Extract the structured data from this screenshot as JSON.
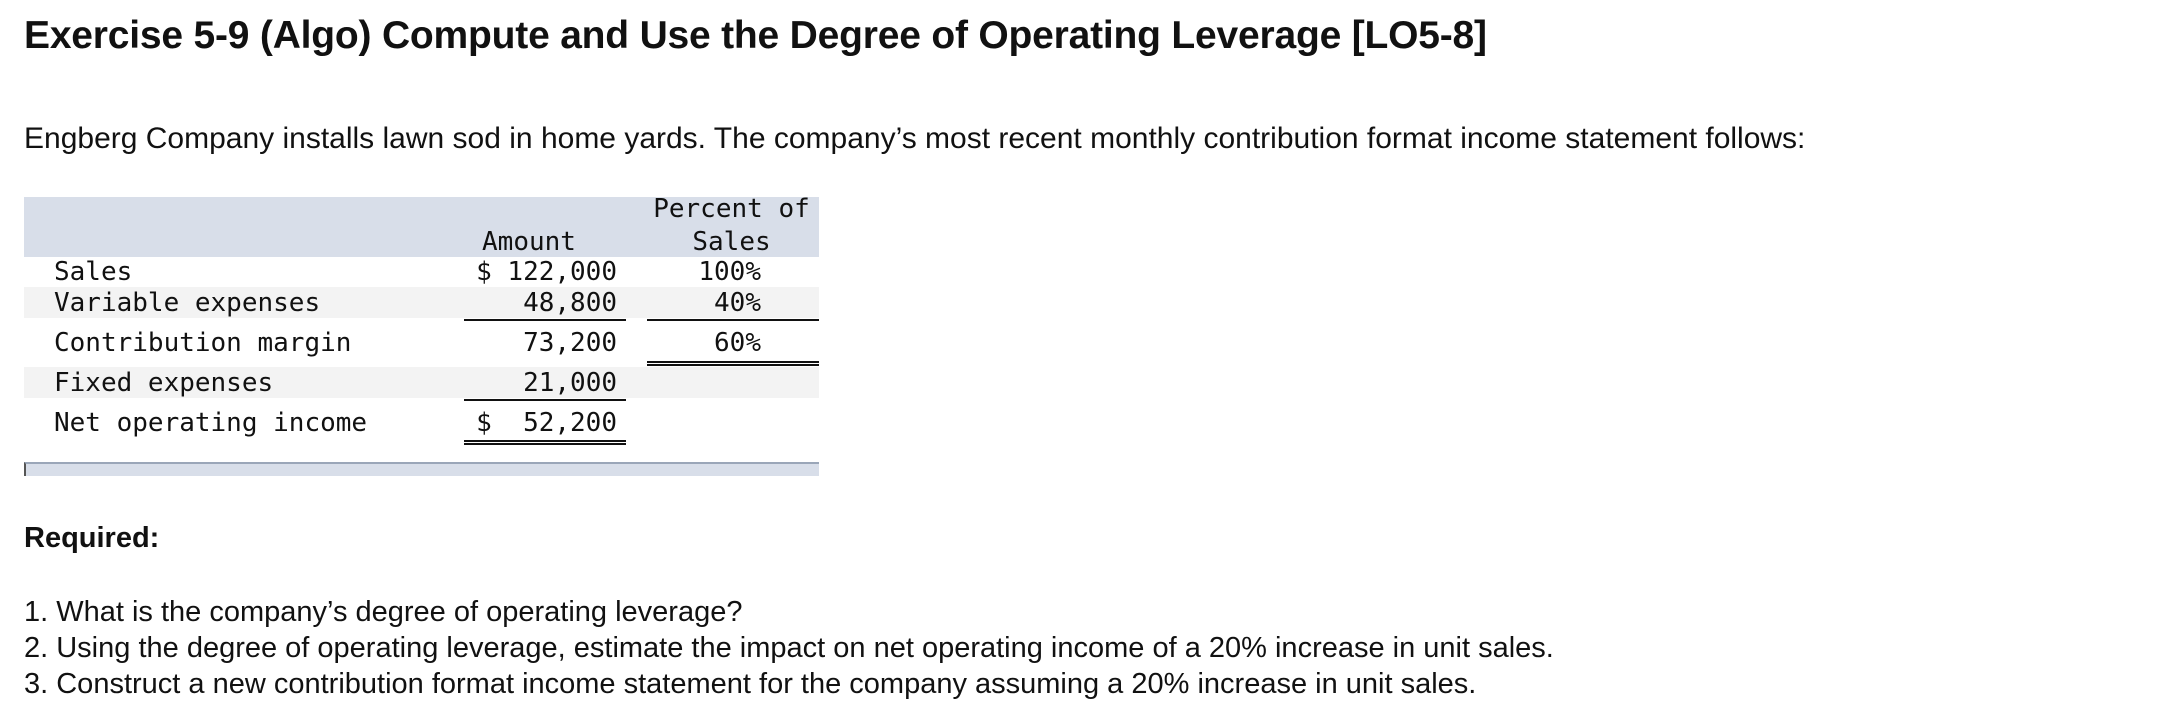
{
  "exercise": {
    "title": "Exercise 5-9 (Algo) Compute and Use the Degree of Operating Leverage [LO5-8]",
    "intro": "Engberg Company installs lawn sod in home yards. The company’s most recent monthly contribution format income statement follows:"
  },
  "statement": {
    "headers": {
      "amount": "Amount",
      "percent_line1": "Percent of",
      "percent_line2": "Sales"
    },
    "rows": [
      {
        "label": "Sales",
        "amount": "$ 122,000",
        "percent": "100%"
      },
      {
        "label": "Variable expenses",
        "amount": "48,800",
        "percent": "40%"
      },
      {
        "label": "Contribution margin",
        "amount": "73,200",
        "percent": "60%"
      },
      {
        "label": "Fixed expenses",
        "amount": "21,000",
        "percent": ""
      },
      {
        "label": "Net operating income",
        "amount": "$  52,200",
        "percent": ""
      }
    ]
  },
  "required": {
    "heading": "Required:",
    "questions": [
      "1. What is the company’s degree of operating leverage?",
      "2. Using the degree of operating leverage, estimate the impact on net operating income of a 20% increase in unit sales.",
      "3. Construct a new contribution format income statement for the company assuming a 20% increase in unit sales."
    ]
  }
}
